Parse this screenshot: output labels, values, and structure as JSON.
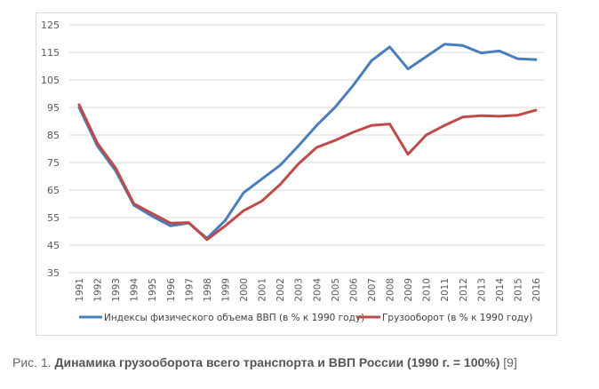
{
  "chart_data": {
    "type": "line",
    "title": "",
    "xlabel": "",
    "ylabel": "",
    "ylim": [
      35,
      125
    ],
    "yticks": [
      35,
      45,
      55,
      65,
      75,
      85,
      95,
      105,
      115,
      125
    ],
    "grid": true,
    "legend_position": "bottom",
    "x": [
      "1991",
      "1992",
      "1993",
      "1994",
      "1995",
      "1996",
      "1997",
      "1998",
      "1999",
      "2000",
      "2001",
      "2002",
      "2003",
      "2004",
      "2005",
      "2006",
      "2007",
      "2008",
      "2009",
      "2010",
      "2011",
      "2012",
      "2013",
      "2014",
      "2015",
      "2016"
    ],
    "series": [
      {
        "name": "Индексы физического объема ВВП (в % к 1990 году)",
        "color": "#4a7ebb",
        "values": [
          95,
          81,
          72,
          59.5,
          55.5,
          52,
          53,
          47.5,
          54,
          64,
          69,
          74,
          81,
          88.5,
          95,
          103,
          112,
          117,
          109,
          113.5,
          118,
          117.5,
          114.8,
          115.5,
          112.7,
          112.4
        ]
      },
      {
        "name": "Грузооборот (в % к 1990 году)",
        "color": "#be4b48",
        "values": [
          96,
          82,
          73,
          60,
          56.5,
          53,
          53.2,
          47,
          52,
          57.5,
          61,
          67,
          74.5,
          80.5,
          83,
          86,
          88.5,
          89,
          78,
          85,
          88.5,
          91.5,
          92,
          91.8,
          92.2,
          94
        ]
      }
    ]
  },
  "caption": {
    "prefix": "Рис. 1. ",
    "title": "Динамика грузооборота всего транспорта и ВВП России (1990 г. = 100%)",
    "ref": " [9]"
  }
}
